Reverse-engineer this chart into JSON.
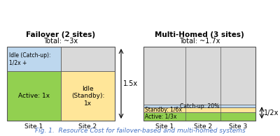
{
  "fig_title": "Fig. 1.  Resource Cost for failover-based and multi-homed systems",
  "fig_title_color": "#4472c4",
  "left_title": "Failover (2 sites)",
  "left_subtitle": "Total: ~3x",
  "right_title": "Multi-Homed (3 sites)",
  "right_subtitle": "Total: ~1.7x",
  "left_brace_label": "1.5x",
  "right_brace_label": "1/2x",
  "color_gray": "#d9d9d9",
  "color_blue": "#bdd7ee",
  "color_green": "#92d050",
  "color_yellow": "#ffe699",
  "fo_active_label": "Active: 1x",
  "fo_idle_catchup_label": "Idle (Catch-up):\n1/2x +",
  "fo_idle_standby_label": "Idle\n(Standby):\n1x",
  "mh_catchup_label": "Catch-up: 20%",
  "mh_standby_label": "Standby: 1/6x",
  "mh_active_label": "Active: 1/3x",
  "background": "#ffffff"
}
